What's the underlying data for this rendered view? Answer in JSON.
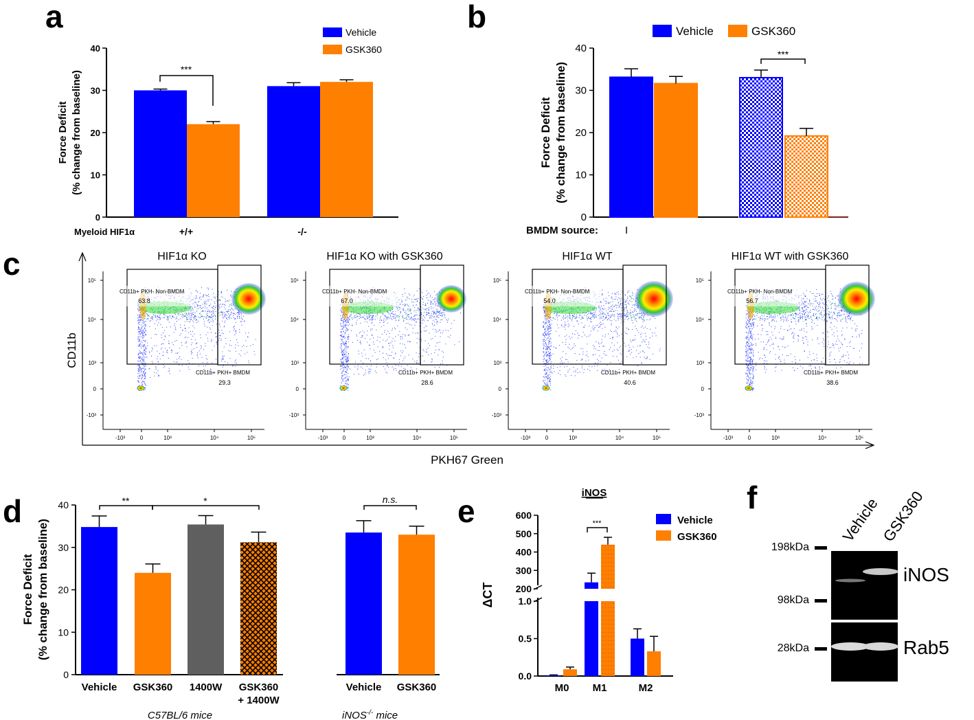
{
  "colors": {
    "blue": "#0000ff",
    "orange": "#ff7f00",
    "gray": "#5f5f5f",
    "black": "#000000"
  },
  "panel_labels": [
    "a",
    "b",
    "c",
    "d",
    "e",
    "f"
  ],
  "chart_data": [
    {
      "panel": "a",
      "type": "bar",
      "ylabel_line1": "Force Deficit",
      "ylabel_line2": "(% change from baseline)",
      "ylim": [
        0,
        40
      ],
      "yticks": [
        "0",
        "10",
        "20",
        "30",
        "40"
      ],
      "categories": [
        "+/+",
        "-/-"
      ],
      "category_axis_label": "Myeloid HIF1α",
      "series": [
        {
          "name": "Vehicle",
          "values": [
            30,
            31
          ],
          "errors": [
            0.3,
            0.8
          ]
        },
        {
          "name": "GSK360",
          "values": [
            22,
            32
          ],
          "errors": [
            0.6,
            0.5
          ]
        }
      ],
      "significance": [
        "***"
      ]
    },
    {
      "panel": "b",
      "type": "bar",
      "ylabel_line1": "Force Deficit",
      "ylabel_line2": "(% change from baseline)",
      "ylim": [
        0,
        40
      ],
      "yticks": [
        "0",
        "10",
        "20",
        "30",
        "40"
      ],
      "category_axis_label": "BMDM source:",
      "category_tick": "I",
      "series": [
        {
          "name": "Vehicle",
          "values": [
            33.1,
            33.0
          ],
          "errors": [
            2.0,
            1.8
          ]
        },
        {
          "name": "GSK360",
          "values": [
            31.6,
            19.2
          ],
          "errors": [
            1.7,
            1.8
          ]
        }
      ],
      "significance": [
        "***"
      ]
    },
    {
      "panel": "d",
      "type": "bar",
      "ylabel_line1": "Force Deficit",
      "ylabel_line2": "(% change from baseline)",
      "ylim": [
        0,
        40
      ],
      "yticks": [
        "0",
        "10",
        "20",
        "30",
        "40"
      ],
      "bars": [
        {
          "label": "Vehicle",
          "value": 34.8,
          "error": 2.6
        },
        {
          "label": "GSK360",
          "value": 24.0,
          "error": 2.1
        },
        {
          "label": "1400W",
          "value": 35.4,
          "error": 2.1
        },
        {
          "label": "GSK360",
          "label2": "+ 1400W",
          "value": 31.2,
          "error": 2.4
        },
        {
          "label": "Vehicle",
          "value": 33.5,
          "error": 2.8
        },
        {
          "label": "GSK360",
          "value": 33.0,
          "error": 2.0
        }
      ],
      "group_labels": [
        "C57BL/6 mice",
        "iNOS",
        "-/-",
        " mice"
      ],
      "significance": [
        "**",
        "*",
        "n.s."
      ]
    },
    {
      "panel": "e",
      "type": "bar",
      "title": "iNOS",
      "ylabel": "ΔCT",
      "upper_yticks": [
        "200",
        "300",
        "400",
        "500",
        "600"
      ],
      "lower_yticks": [
        "0.0",
        "0.5",
        "1.0"
      ],
      "categories": [
        "M0",
        "M1",
        "M2"
      ],
      "series": [
        {
          "name": "Vehicle",
          "values": [
            0.01,
            235,
            0.5
          ],
          "errors": [
            0.005,
            50,
            0.13
          ]
        },
        {
          "name": "GSK360",
          "values": [
            0.09,
            440,
            0.33
          ],
          "errors": [
            0.03,
            40,
            0.2
          ]
        }
      ],
      "significance": [
        "***"
      ]
    }
  ],
  "legend": {
    "vehicle": "Vehicle",
    "gsk": "GSK360"
  },
  "flow": {
    "ylabel": "CD11b",
    "xlabel": "PKH67 Green",
    "gate_nonbmdm": "CD11b+ PKH- Non-BMDM",
    "gate_bmdm": "CD11b+ PKH+ BMDM",
    "yticks": [
      "10⁵",
      "10⁴",
      "10³",
      "0",
      "-10³"
    ],
    "xticks": [
      "-10³",
      "0",
      "10³",
      "10⁴",
      "10⁵"
    ],
    "plots": [
      {
        "title": "HIF1α KO",
        "nonbmdm": "63.8",
        "bmdm": "29.3"
      },
      {
        "title": "HIF1α KO with GSK360",
        "nonbmdm": "67.0",
        "bmdm": "28.6"
      },
      {
        "title": "HIF1α WT",
        "nonbmdm": "54.0",
        "bmdm": "40.6"
      },
      {
        "title": "HIF1α WT with GSK360",
        "nonbmdm": "56.7",
        "bmdm": "38.6"
      }
    ]
  },
  "blot": {
    "lanes": [
      "Vehicle",
      "GSK360"
    ],
    "markers": [
      "198kDa",
      "98kDa",
      "28kDa"
    ],
    "bands": [
      "iNOS",
      "Rab5"
    ]
  }
}
